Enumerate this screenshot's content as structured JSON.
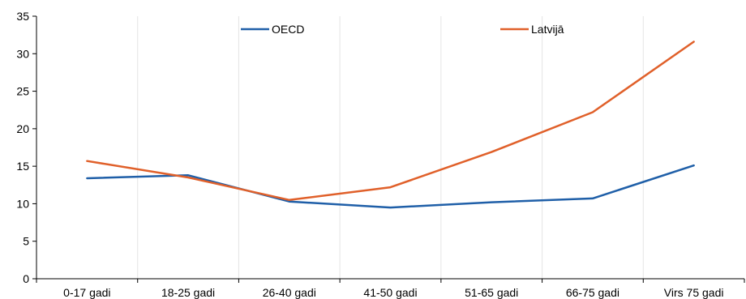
{
  "chart_data": {
    "type": "line",
    "title": "",
    "xlabel": "",
    "ylabel": "",
    "categories": [
      "0-17 gadi",
      "18-25 gadi",
      "26-40 gadi",
      "41-50 gadi",
      "51-65 gadi",
      "66-75 gadi",
      "Virs 75 gadi"
    ],
    "ylim": [
      0,
      35
    ],
    "yticks": [
      0,
      5,
      10,
      15,
      20,
      25,
      30,
      35
    ],
    "grid": "vertical",
    "legend_position": "top",
    "series": [
      {
        "name": "OECD",
        "color": "#1f5fa8",
        "values": [
          13.4,
          13.8,
          10.3,
          9.5,
          10.2,
          10.7,
          15.1
        ]
      },
      {
        "name": "Latvijā",
        "color": "#e0602a",
        "values": [
          15.7,
          13.5,
          10.5,
          12.2,
          16.9,
          22.2,
          31.6
        ]
      }
    ]
  }
}
